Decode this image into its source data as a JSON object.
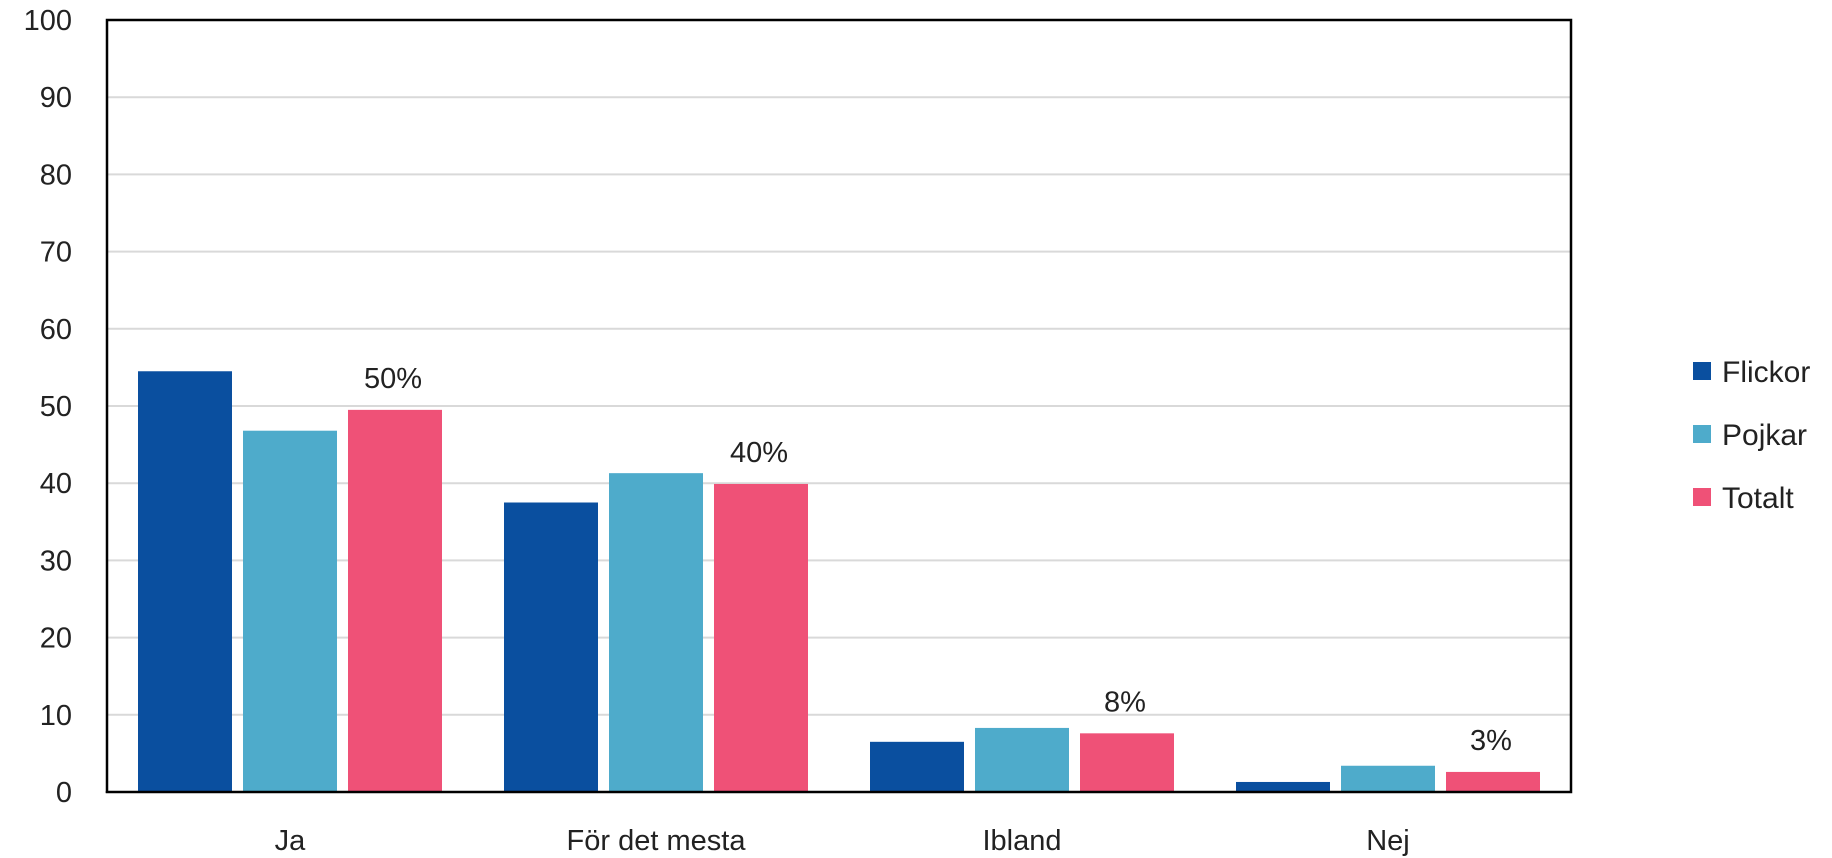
{
  "chart_data": {
    "type": "bar",
    "categories": [
      "Ja",
      "För det mesta",
      "Ibland",
      "Nej"
    ],
    "series": [
      {
        "name": "Flickor",
        "color": "#0a4f9f",
        "values": [
          54.5,
          37.5,
          6.5,
          1.3
        ]
      },
      {
        "name": "Pojkar",
        "color": "#4eabcb",
        "values": [
          46.8,
          41.3,
          8.3,
          3.4
        ]
      },
      {
        "name": "Totalt",
        "color": "#ef5177",
        "values": [
          49.5,
          39.9,
          7.6,
          2.6
        ]
      }
    ],
    "data_labels": {
      "series": "Totalt",
      "labels": [
        "50%",
        "40%",
        "8%",
        "3%"
      ]
    },
    "ylim": [
      0,
      100
    ],
    "yticks": [
      "0",
      "10",
      "20",
      "30",
      "40",
      "50",
      "60",
      "70",
      "80",
      "90",
      "100"
    ],
    "grid": true,
    "legend_position": "right",
    "title": "",
    "xlabel": "",
    "ylabel": ""
  }
}
